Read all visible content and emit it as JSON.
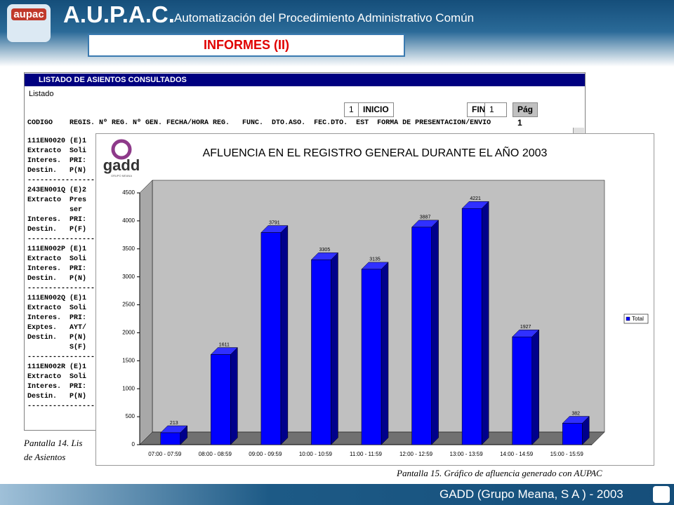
{
  "header": {
    "logo": "aupac",
    "title": "A.U.P.A.C.",
    "subtitle": "Automatización del Procedimiento Administrativo Común",
    "section": "INFORMES (II)"
  },
  "listing": {
    "window_title": "LISTADO DE ASIENTOS CONSULTADOS",
    "menu": "Listado",
    "toolbar": [
      "1",
      "INICIO",
      "FIN",
      "1",
      "Pág 1"
    ],
    "columns": "CODIGO    REGIS. Nº REG. Nº GEN. FECHA/HORA REG.   FUNC.  DTO.ASO.  FEC.DTO.  EST  FORMA DE PRESENTACION/ENVIO",
    "lines": [
      "111EN0020 (E)1",
      "Extracto  Soli",
      "Interes.  PRI:",
      "Destin.   P(N)",
      "------------------",
      "243EN001Q (E)2",
      "Extracto  Pres",
      "          ser",
      "Interes.  PRI:",
      "Destin.   P(F)",
      "------------------",
      "111EN002P (E)1",
      "Extracto  Soli",
      "Interes.  PRI:",
      "Destin.   P(N)",
      "------------------",
      "111EN002Q (E)1",
      "Extracto  Soli",
      "Interes.  PRI:",
      "Exptes.   AYT/",
      "Destin.   P(N)",
      "          S(F)",
      "------------------",
      "111EN002R (E)1",
      "Extracto  Soli",
      "Interes.  PRI:",
      "Destin.   P(N)",
      "------------------"
    ],
    "caption": [
      "Pantalla 14. Lis",
      "de Asientos"
    ]
  },
  "chart_logo": {
    "name": "gadd",
    "sub": "GRUPO MEANA"
  },
  "chart_data": {
    "type": "bar3d",
    "title": "AFLUENCIA EN EL REGISTRO GENERAL DURANTE EL AÑO 2003",
    "categories": [
      "07:00 - 07:59",
      "08:00 - 08:59",
      "09:00 - 09:59",
      "10:00 - 10:59",
      "11:00 - 11:59",
      "12:00 - 12:59",
      "13:00 - 13:59",
      "14:00 - 14:59",
      "15:00 - 15:59"
    ],
    "series": [
      {
        "name": "Total",
        "color": "#0000ff",
        "values": [
          213,
          1611,
          3791,
          3305,
          3135,
          3887,
          4221,
          1927,
          382
        ]
      }
    ],
    "ylim": [
      0,
      4500
    ],
    "yticks": [
      0,
      500,
      1000,
      1500,
      2000,
      2500,
      3000,
      3500,
      4000,
      4500
    ],
    "legend": "right"
  },
  "chart_caption": "Pantalla 15. Gráfico de afluencia generado con AUPAC",
  "footer": "GADD (Grupo Meana, S A ) - 2003"
}
